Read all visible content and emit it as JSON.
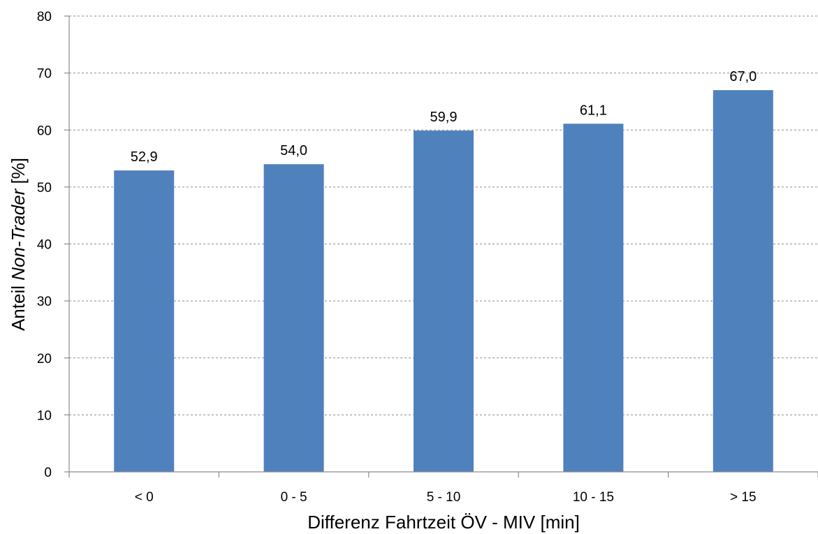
{
  "chart_data": {
    "type": "bar",
    "categories": [
      "< 0",
      "0 - 5",
      "5 - 10",
      "10 - 15",
      "> 15"
    ],
    "values": [
      52.9,
      54.0,
      59.9,
      61.1,
      67.0
    ],
    "data_labels": [
      "52,9",
      "54,0",
      "59,9",
      "61,1",
      "67,0"
    ],
    "xlabel": "Differenz Fahrtzeit ÖV - MIV [min]",
    "ylabel_prefix": "Anteil ",
    "ylabel_italic": "Non-Trader",
    "ylabel_suffix": " [%]",
    "ylim": [
      0,
      80
    ],
    "yticks": [
      0,
      10,
      20,
      30,
      40,
      50,
      60,
      70,
      80
    ],
    "grid": true,
    "legend": false,
    "bar_color": "#4f81bd",
    "grid_color": "#8c8c8c"
  }
}
